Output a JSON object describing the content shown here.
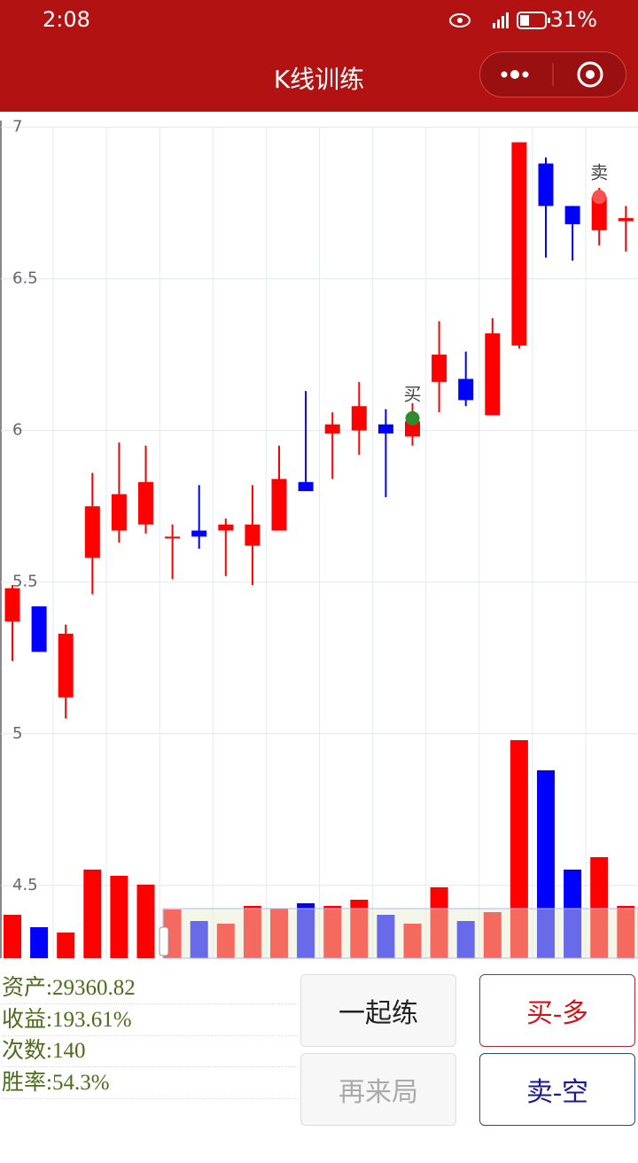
{
  "status_bar": {
    "time": "2:08",
    "battery": "31%"
  },
  "header": {
    "title": "K线训练"
  },
  "chart_data": {
    "type": "candlestick",
    "up_color": "#ff0000",
    "down_color": "#0000ff",
    "open": [
      5.37,
      5.42,
      5.12,
      5.58,
      5.67,
      5.69,
      5.65,
      5.67,
      5.67,
      5.62,
      5.67,
      5.83,
      5.99,
      6.0,
      6.02,
      5.98,
      6.16,
      6.17,
      6.05,
      6.28,
      6.88,
      6.74,
      6.66,
      6.69
    ],
    "high": [
      5.49,
      5.42,
      5.36,
      5.86,
      5.96,
      5.95,
      5.69,
      5.82,
      5.71,
      5.82,
      5.95,
      6.13,
      6.06,
      6.16,
      6.07,
      6.09,
      6.36,
      6.26,
      6.37,
      6.95,
      6.9,
      6.74,
      6.8,
      6.74
    ],
    "low": [
      5.24,
      5.27,
      5.05,
      5.46,
      5.63,
      5.66,
      5.51,
      5.61,
      5.52,
      5.49,
      5.67,
      5.8,
      5.84,
      5.92,
      5.78,
      5.95,
      6.06,
      6.08,
      6.05,
      6.27,
      6.57,
      6.56,
      6.61,
      6.59
    ],
    "close": [
      5.48,
      5.27,
      5.33,
      5.75,
      5.79,
      5.83,
      5.65,
      5.65,
      5.69,
      5.69,
      5.84,
      5.8,
      6.02,
      6.08,
      5.99,
      6.03,
      6.25,
      6.1,
      6.32,
      6.95,
      6.74,
      6.68,
      6.77,
      6.7
    ],
    "volume": [
      49,
      35,
      29,
      100,
      93,
      83,
      55,
      42,
      39,
      59,
      56,
      62,
      59,
      66,
      49,
      39,
      80,
      42,
      52,
      246,
      212,
      100,
      114,
      59
    ],
    "ylim": [
      4.26,
      7.01
    ],
    "yticks": [
      4.5,
      5,
      5.5,
      6,
      6.5,
      7
    ],
    "annotations": [
      {
        "label": "买",
        "index": 15,
        "value": 6.04,
        "color": "#2e8b2e"
      },
      {
        "label": "卖",
        "index": 22,
        "value": 6.77,
        "color": "#ff5050"
      }
    ]
  },
  "stats": [
    "资产:29360.82",
    "收益:193.61%",
    "次数:140",
    "胜率:54.3%"
  ],
  "buttons": [
    "一起练",
    "买-多",
    "再来局",
    "卖-空"
  ]
}
